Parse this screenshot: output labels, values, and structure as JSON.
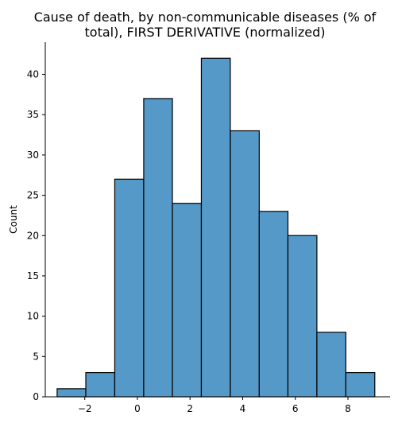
{
  "chart_data": {
    "type": "histogram",
    "title": "Cause of death, by non-communicable diseases (% of total), FIRST DERIVATIVE (normalized)",
    "title_lines": [
      "Cause of death, by non-communicable diseases (% of",
      "total), FIRST DERIVATIVE (normalized)"
    ],
    "xlabel": "",
    "ylabel": "Count",
    "xlim": [
      -3.5,
      9.6
    ],
    "ylim": [
      0,
      44
    ],
    "xticks": [
      -2,
      0,
      2,
      4,
      6,
      8
    ],
    "xtick_labels": [
      "−2",
      "0",
      "2",
      "4",
      "6",
      "8"
    ],
    "yticks": [
      0,
      5,
      10,
      15,
      20,
      25,
      30,
      35,
      40
    ],
    "bins": [
      {
        "x0": -3.05,
        "x1": -1.96,
        "count": 1
      },
      {
        "x0": -1.96,
        "x1": -0.86,
        "count": 3
      },
      {
        "x0": -0.86,
        "x1": 0.24,
        "count": 27
      },
      {
        "x0": 0.24,
        "x1": 1.33,
        "count": 37
      },
      {
        "x0": 1.33,
        "x1": 2.43,
        "count": 24
      },
      {
        "x0": 2.43,
        "x1": 3.53,
        "count": 42
      },
      {
        "x0": 3.53,
        "x1": 4.63,
        "count": 33
      },
      {
        "x0": 4.63,
        "x1": 5.72,
        "count": 23
      },
      {
        "x0": 5.72,
        "x1": 6.82,
        "count": 20
      },
      {
        "x0": 6.82,
        "x1": 7.92,
        "count": 8
      },
      {
        "x0": 7.92,
        "x1": 9.02,
        "count": 3
      }
    ],
    "bar_color": "#5599c8",
    "bar_edge_color": "#000000",
    "grid": false,
    "legend": "none"
  }
}
